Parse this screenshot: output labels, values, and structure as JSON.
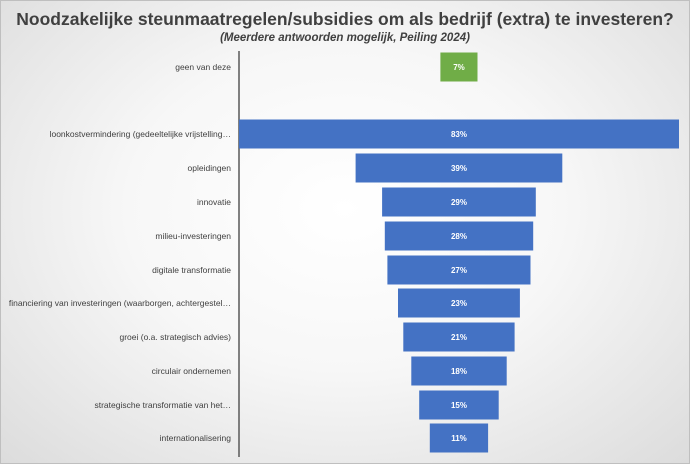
{
  "chart_data": {
    "type": "bar",
    "orientation": "horizontal",
    "title": "Noodzakelijke steunmaatregelen/subsidies om als bedrijf (extra) te investeren?",
    "subtitle": "(Meerdere antwoorden mogelijk, Peiling 2024)",
    "categories": [
      "geen van deze",
      "loonkostvermindering (gedeeltelijke vrijstelling…",
      "opleidingen",
      "innovatie",
      "milieu-investeringen",
      "digitale transformatie",
      "financiering van investeringen (waarborgen, achtergestel…",
      "groei (o.a. strategisch advies)",
      "circulair ondernemen",
      "strategische transformatie van het…",
      "internationalisering"
    ],
    "values": [
      7,
      83,
      39,
      29,
      28,
      27,
      23,
      21,
      18,
      15,
      11
    ],
    "value_labels": [
      "7%",
      "83%",
      "39%",
      "29%",
      "28%",
      "27%",
      "23%",
      "21%",
      "18%",
      "15%",
      "11%"
    ],
    "bar_colors": [
      "#70ad47",
      "#4472c4",
      "#4472c4",
      "#4472c4",
      "#4472c4",
      "#4472c4",
      "#4472c4",
      "#4472c4",
      "#4472c4",
      "#4472c4",
      "#4472c4"
    ],
    "alignment": "centered",
    "xlim": [
      0,
      83
    ],
    "grid": false,
    "legend": "none"
  }
}
